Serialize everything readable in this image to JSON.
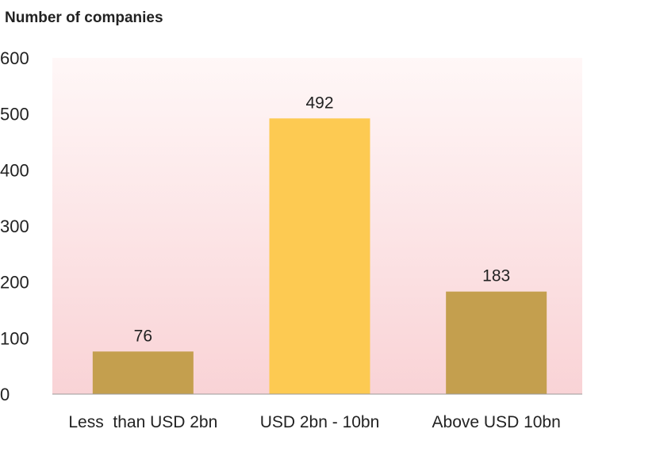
{
  "chart_data": {
    "type": "bar",
    "ylabel": "Number of companies",
    "xlabel": "",
    "categories": [
      "Less  than USD 2bn",
      "USD 2bn - 10bn",
      "Above USD 10bn"
    ],
    "values": [
      76,
      492,
      183
    ],
    "data_labels": [
      "76",
      "492",
      "183"
    ],
    "bar_colors": [
      "#c49f4e",
      "#fdca52",
      "#c49f4e"
    ],
    "ylim": [
      0,
      600
    ],
    "yticks": [
      0,
      100,
      200,
      300,
      400,
      500,
      600
    ],
    "grid": false,
    "legend": "none",
    "background_gradient": [
      "#fff7f7",
      "#f9d3d6"
    ]
  }
}
